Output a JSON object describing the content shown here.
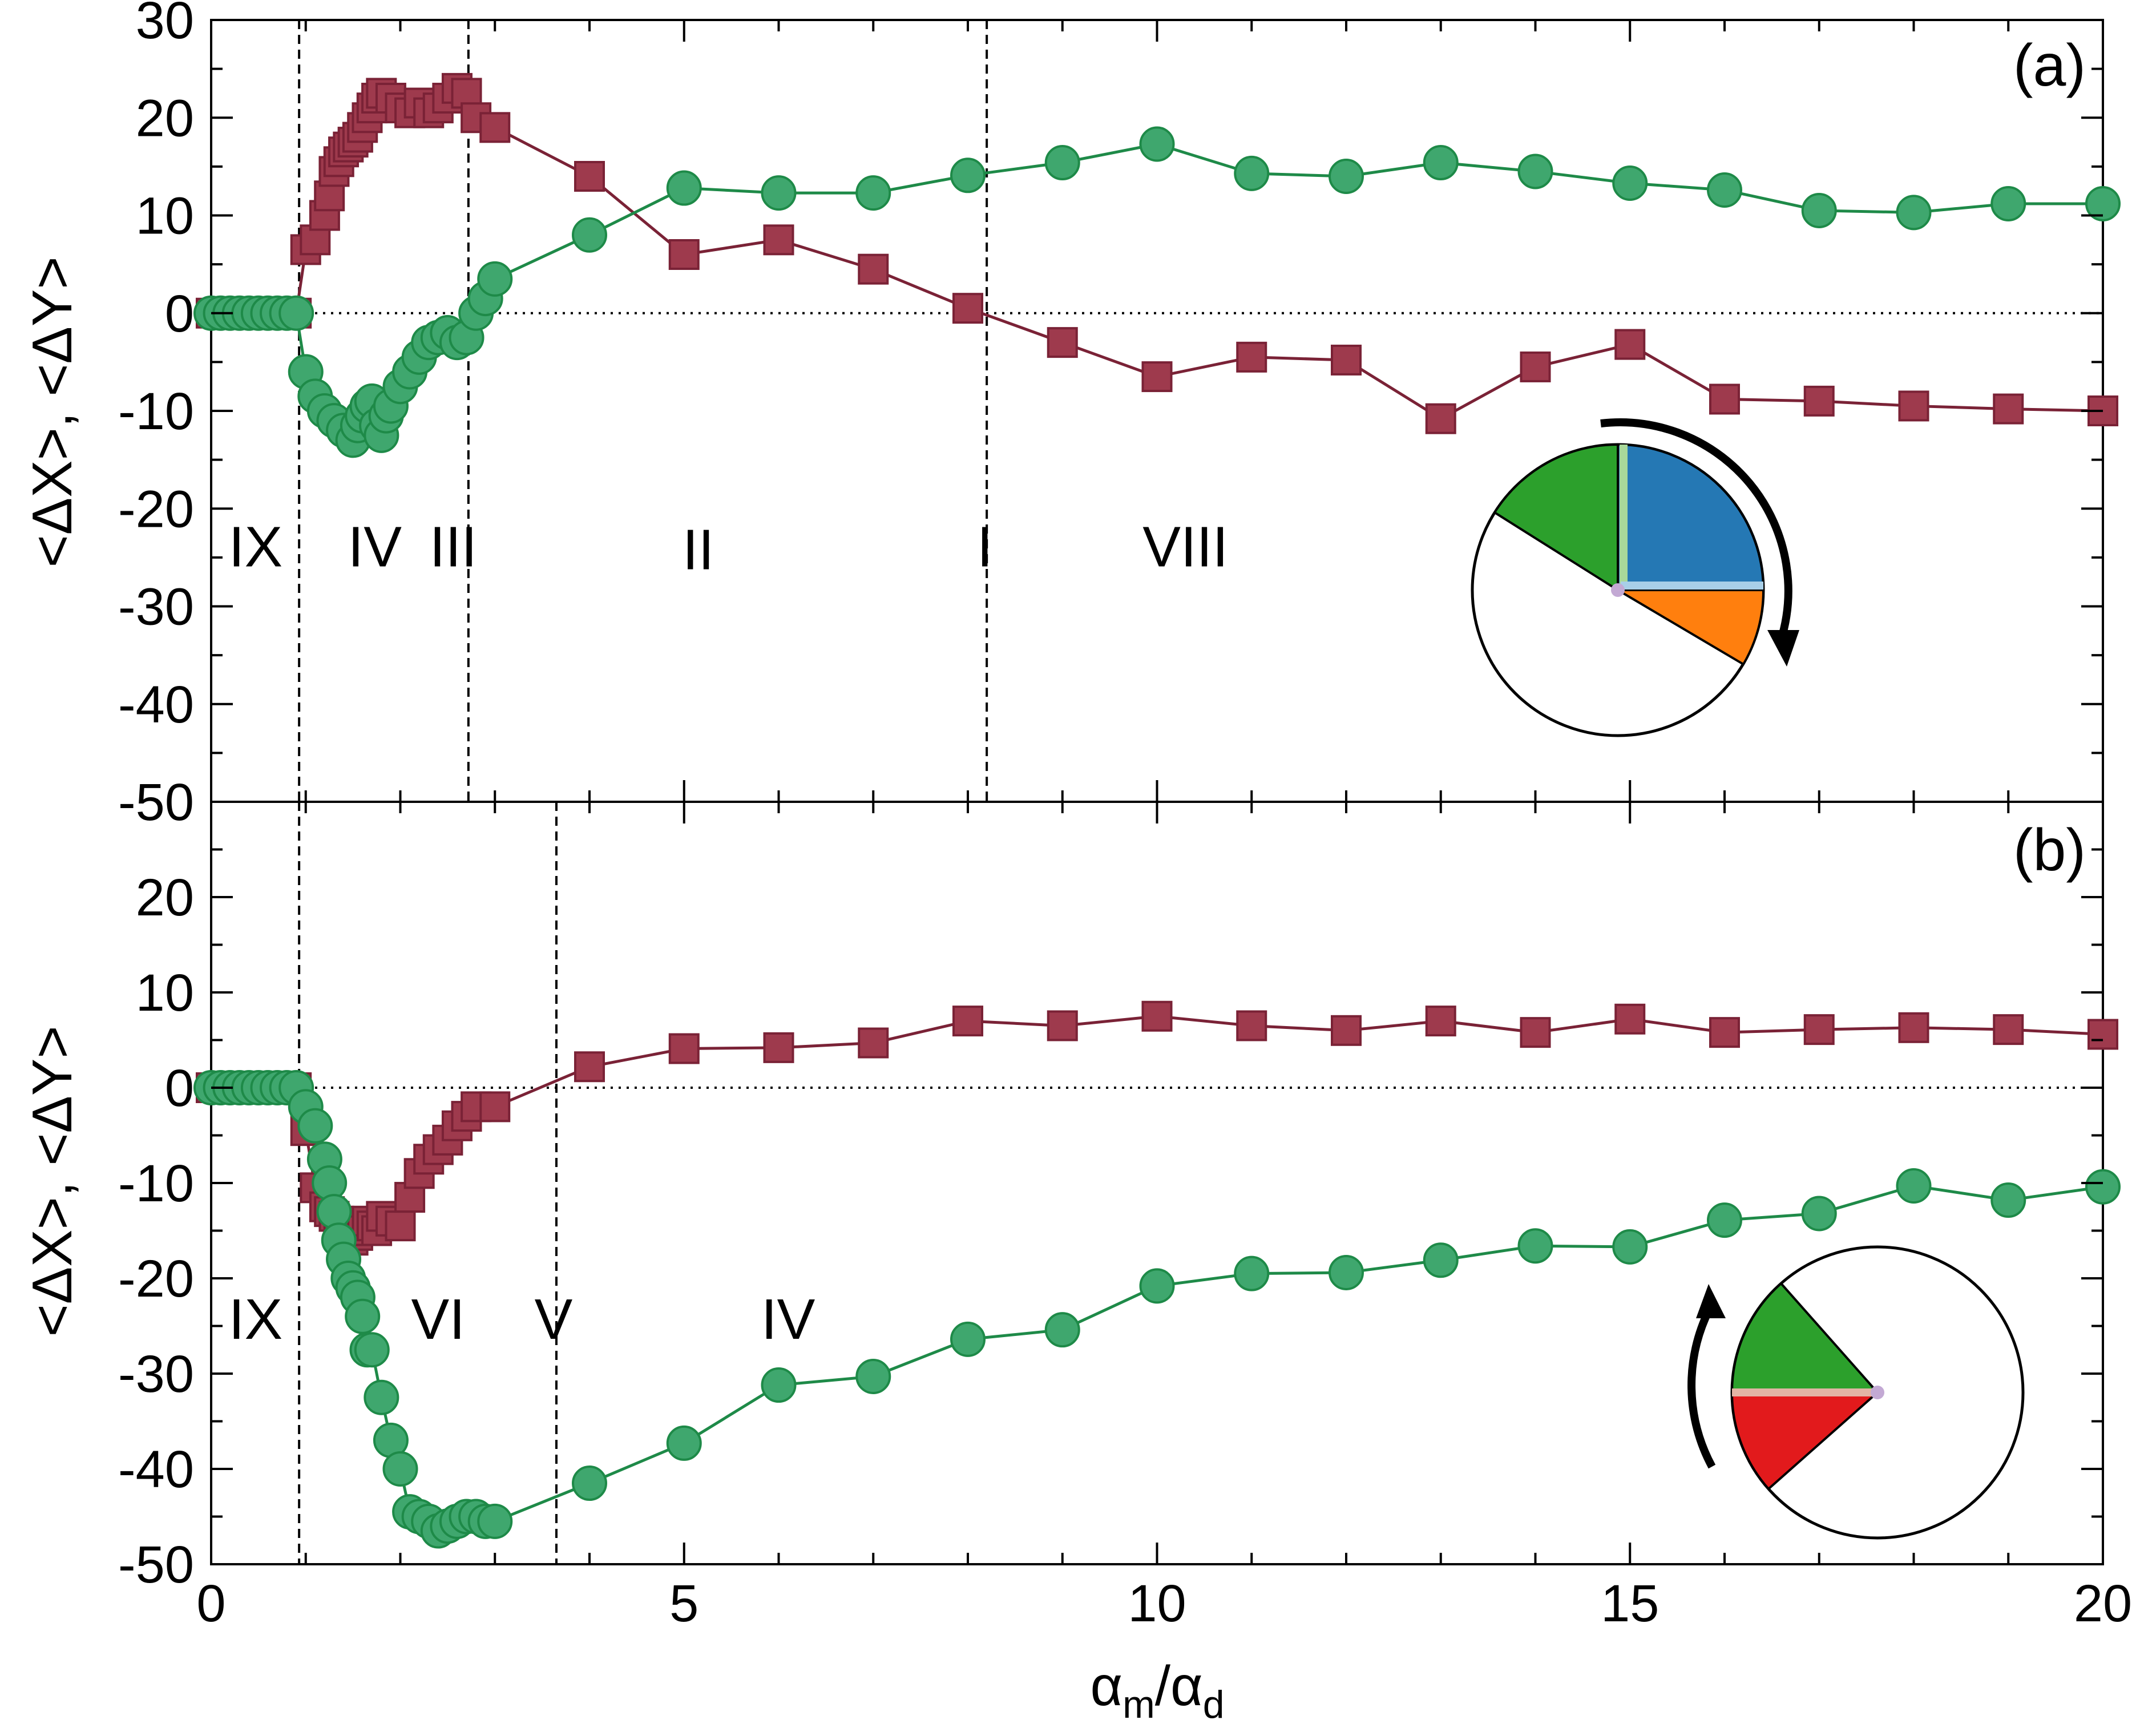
{
  "figure": {
    "xlabel_main": "α",
    "xlabel_sub1": "m",
    "xlabel_slash": "/α",
    "xlabel_sub2": "d",
    "ylabel": "<ΔX>, <ΔY>",
    "colors": {
      "squares": "#9e3a4d",
      "circles": "#3fa76e",
      "square_line": "#7a2236",
      "circle_line": "#1e8a48",
      "pie_blue": "#2578b4",
      "pie_orange": "#ff7f0e",
      "pie_green": "#2ca02c",
      "pie_red": "#e21a1c",
      "pie_light_green": "#a9d89a",
      "pie_light_blue": "#a8cfe8",
      "pie_pink": "#e3b4a5",
      "pie_pivot": "#c3a9d4"
    }
  },
  "chart_data": [
    {
      "type": "scatter",
      "panel": "(a)",
      "xlim": [
        0,
        20
      ],
      "ylim": [
        -50,
        30
      ],
      "xticks": [
        0,
        5,
        10,
        15,
        20
      ],
      "yticks": [
        -50,
        -40,
        -30,
        -20,
        -10,
        0,
        10,
        20,
        30
      ],
      "x_tick_labels": [
        "0",
        "5",
        "10",
        "15",
        "20"
      ],
      "y_tick_labels": [
        "-50",
        "-40",
        "-30",
        "-20",
        "-10",
        "0",
        "10",
        "20",
        "30"
      ],
      "vlines": [
        0.93,
        2.72,
        8.2
      ],
      "hline_dotted": 0,
      "region_labels": [
        {
          "text": "IX",
          "x": 0.47,
          "y": -23.8
        },
        {
          "text": "IV",
          "x": 1.73,
          "y": -23.8
        },
        {
          "text": "III",
          "x": 2.56,
          "y": -23.8
        },
        {
          "text": "II",
          "x": 5.15,
          "y": -24.1
        },
        {
          "text": "I",
          "x": 8.18,
          "y": -23.8
        },
        {
          "text": "VIII",
          "x": 10.3,
          "y": -23.8
        }
      ],
      "inset": {
        "rotation": "clockwise",
        "wedges": [
          "blue",
          "orange",
          "green"
        ]
      },
      "series": [
        {
          "name": "squares",
          "marker": "square",
          "x": [
            0,
            0.1,
            0.2,
            0.3,
            0.4,
            0.5,
            0.6,
            0.7,
            0.8,
            0.9,
            1.0,
            1.1,
            1.2,
            1.25,
            1.3,
            1.35,
            1.4,
            1.45,
            1.5,
            1.55,
            1.6,
            1.65,
            1.7,
            1.75,
            1.8,
            1.9,
            2.0,
            2.1,
            2.2,
            2.3,
            2.4,
            2.5,
            2.6,
            2.7,
            2.8,
            3.0,
            4.0,
            5.0,
            6.0,
            7.0,
            8.0,
            9.0,
            10.0,
            11.0,
            12.0,
            13.0,
            14.0,
            15.0,
            16.0,
            17.0,
            18.0,
            19.0,
            20.0
          ],
          "y": [
            0,
            0,
            0,
            0,
            0,
            0,
            0,
            0,
            0,
            0,
            6.5,
            7.5,
            10,
            12,
            14.5,
            15.5,
            16.5,
            17,
            17.5,
            18,
            19,
            20,
            21,
            22,
            22.5,
            22,
            21,
            20.5,
            21.5,
            20.5,
            21,
            22,
            23,
            22.5,
            20,
            19,
            14,
            6,
            7.5,
            4.5,
            0.5,
            -3,
            -6.5,
            -4.5,
            -4.8,
            -10.8,
            -5.5,
            -3.2,
            -8.8,
            -9,
            -9.5,
            -9.8,
            -10
          ]
        },
        {
          "name": "circles",
          "marker": "circle",
          "x": [
            0,
            0.1,
            0.2,
            0.3,
            0.4,
            0.5,
            0.6,
            0.7,
            0.8,
            0.9,
            1.0,
            1.1,
            1.2,
            1.3,
            1.4,
            1.5,
            1.55,
            1.6,
            1.65,
            1.7,
            1.75,
            1.8,
            1.85,
            1.9,
            2.0,
            2.1,
            2.2,
            2.3,
            2.4,
            2.5,
            2.6,
            2.7,
            2.8,
            2.9,
            3.0,
            4.0,
            5.0,
            6.0,
            7.0,
            8.0,
            9.0,
            10.0,
            11.0,
            12.0,
            13.0,
            14.0,
            15.0,
            16.0,
            17.0,
            18.0,
            19.0,
            20.0
          ],
          "y": [
            0,
            0,
            0,
            0,
            0,
            0,
            0,
            0,
            0,
            0,
            -6,
            -8.5,
            -10,
            -11,
            -12,
            -13,
            -11.5,
            -10.5,
            -9.5,
            -9,
            -11.5,
            -12.5,
            -10.5,
            -9.5,
            -7.5,
            -6,
            -4.5,
            -3,
            -2.5,
            -2,
            -3,
            -2.5,
            0,
            1.5,
            3.5,
            8,
            12.8,
            12.3,
            12.3,
            14.1,
            15.4,
            17.3,
            14.3,
            14.0,
            15.4,
            14.5,
            13.3,
            12.6,
            10.5,
            10.3,
            11.2,
            11.2
          ]
        }
      ]
    },
    {
      "type": "scatter",
      "panel": "(b)",
      "xlim": [
        0,
        20
      ],
      "ylim": [
        -50,
        30
      ],
      "xticks": [
        0,
        5,
        10,
        15,
        20
      ],
      "yticks": [
        -50,
        -40,
        -30,
        -20,
        -10,
        0,
        10,
        20
      ],
      "x_tick_labels": [
        "0",
        "5",
        "10",
        "15",
        "20"
      ],
      "y_tick_labels": [
        "-50",
        "-40",
        "-30",
        "-20",
        "-10",
        "0",
        "10",
        "20"
      ],
      "vlines": [
        0.93,
        3.65
      ],
      "hline_dotted": 0,
      "region_labels": [
        {
          "text": "IX",
          "x": 0.47,
          "y": -24.2
        },
        {
          "text": "VI",
          "x": 2.4,
          "y": -24.2
        },
        {
          "text": "V",
          "x": 3.62,
          "y": -24.2
        },
        {
          "text": "IV",
          "x": 6.1,
          "y": -24.2
        }
      ],
      "inset": {
        "rotation": "counterclockwise",
        "wedges": [
          "green",
          "red"
        ]
      },
      "series": [
        {
          "name": "squares",
          "marker": "square",
          "x": [
            0,
            0.1,
            0.2,
            0.3,
            0.4,
            0.5,
            0.6,
            0.7,
            0.8,
            0.9,
            1.0,
            1.1,
            1.2,
            1.25,
            1.3,
            1.35,
            1.4,
            1.45,
            1.5,
            1.55,
            1.6,
            1.65,
            1.7,
            1.75,
            1.8,
            1.9,
            2.0,
            2.1,
            2.2,
            2.3,
            2.4,
            2.5,
            2.6,
            2.7,
            2.8,
            3.0,
            4.0,
            5.0,
            6.0,
            7.0,
            8.0,
            9.0,
            10.0,
            11.0,
            12.0,
            13.0,
            14.0,
            15.0,
            16.0,
            17.0,
            18.0,
            19.0,
            20.0
          ],
          "y": [
            0,
            0,
            0,
            0,
            0,
            0,
            0,
            0,
            0,
            0,
            -4.5,
            -10.5,
            -12.5,
            -13,
            -13.5,
            -14,
            -15,
            -15.5,
            -16,
            -15.5,
            -15,
            -14,
            -14.5,
            -15,
            -13.5,
            -14,
            -14.5,
            -11.5,
            -9,
            -7.5,
            -6.5,
            -5.5,
            -4,
            -3,
            -2,
            -2,
            2.2,
            4.1,
            4.2,
            4.7,
            7,
            6.5,
            7.5,
            6.5,
            6,
            7,
            5.8,
            7.2,
            5.8,
            6.1,
            6.3,
            6.1,
            5.6
          ]
        },
        {
          "name": "circles",
          "marker": "circle",
          "x": [
            0,
            0.1,
            0.2,
            0.3,
            0.4,
            0.5,
            0.6,
            0.7,
            0.8,
            0.9,
            1.0,
            1.1,
            1.2,
            1.25,
            1.3,
            1.35,
            1.4,
            1.45,
            1.5,
            1.55,
            1.6,
            1.65,
            1.7,
            1.8,
            1.9,
            2.0,
            2.1,
            2.2,
            2.3,
            2.4,
            2.5,
            2.6,
            2.7,
            2.8,
            2.9,
            3.0,
            4.0,
            5.0,
            6.0,
            7.0,
            8.0,
            9.0,
            10.0,
            11.0,
            12.0,
            13.0,
            14.0,
            15.0,
            16.0,
            17.0,
            18.0,
            19.0,
            20.0
          ],
          "y": [
            0,
            0,
            0,
            0,
            0,
            0,
            0,
            0,
            0,
            0,
            -2,
            -4,
            -7.5,
            -10,
            -13,
            -16,
            -18,
            -20,
            -21,
            -22,
            -24,
            -27.5,
            -27.5,
            -32.5,
            -37,
            -40,
            -44.5,
            -45,
            -45.5,
            -46.5,
            -46,
            -45.5,
            -45,
            -45,
            -45.5,
            -45.5,
            -41.5,
            -37.3,
            -31.2,
            -30.3,
            -26.4,
            -25.4,
            -20.8,
            -19.5,
            -19.4,
            -18.1,
            -16.6,
            -16.7,
            -13.9,
            -13.2,
            -10.3,
            -11.8,
            -10.4
          ]
        }
      ]
    }
  ]
}
